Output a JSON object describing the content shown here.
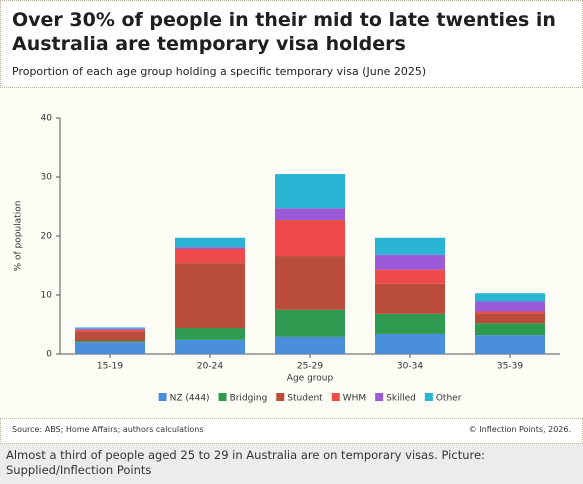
{
  "chart_data": {
    "type": "stacked_bar",
    "title": "Over 30% of people in their mid to late twenties in Australia are temporary visa holders",
    "subtitle": "Proportion of each age group holding a specific temporary visa (June 2025)",
    "x_label": "Age group",
    "y_label": "% of population",
    "categories": [
      "15-19",
      "20-24",
      "25-29",
      "30-34",
      "35-39"
    ],
    "series": [
      {
        "name": "NZ (444)",
        "color": "#4a8fdb",
        "values": [
          2.0,
          2.4,
          2.9,
          3.4,
          3.2
        ]
      },
      {
        "name": "Bridging",
        "color": "#2e9a4f",
        "values": [
          0.2,
          2.0,
          4.6,
          3.4,
          2.0
        ]
      },
      {
        "name": "Student",
        "color": "#b94c3b",
        "values": [
          1.6,
          11.0,
          9.1,
          5.1,
          1.7
        ]
      },
      {
        "name": "WHM",
        "color": "#ef4a4a",
        "values": [
          0.3,
          2.4,
          6.1,
          2.4,
          0.3
        ]
      },
      {
        "name": "Skilled",
        "color": "#9b5bd8",
        "values": [
          0.2,
          0.3,
          2.0,
          2.5,
          1.7
        ]
      },
      {
        "name": "Other",
        "color": "#2ab4d3",
        "values": [
          0.2,
          1.6,
          5.8,
          2.9,
          1.4
        ]
      }
    ],
    "ylim": [
      0,
      40
    ],
    "yticks": [
      0,
      10,
      20,
      30,
      40
    ],
    "source": "Source: ABS; Home Affairs; authors calculations",
    "credit": "© Inflection Points, 2026."
  },
  "caption": "Almost a third of people aged 25 to 29 in Australia are on temporary visas. Picture: Supplied/Inflection Points"
}
